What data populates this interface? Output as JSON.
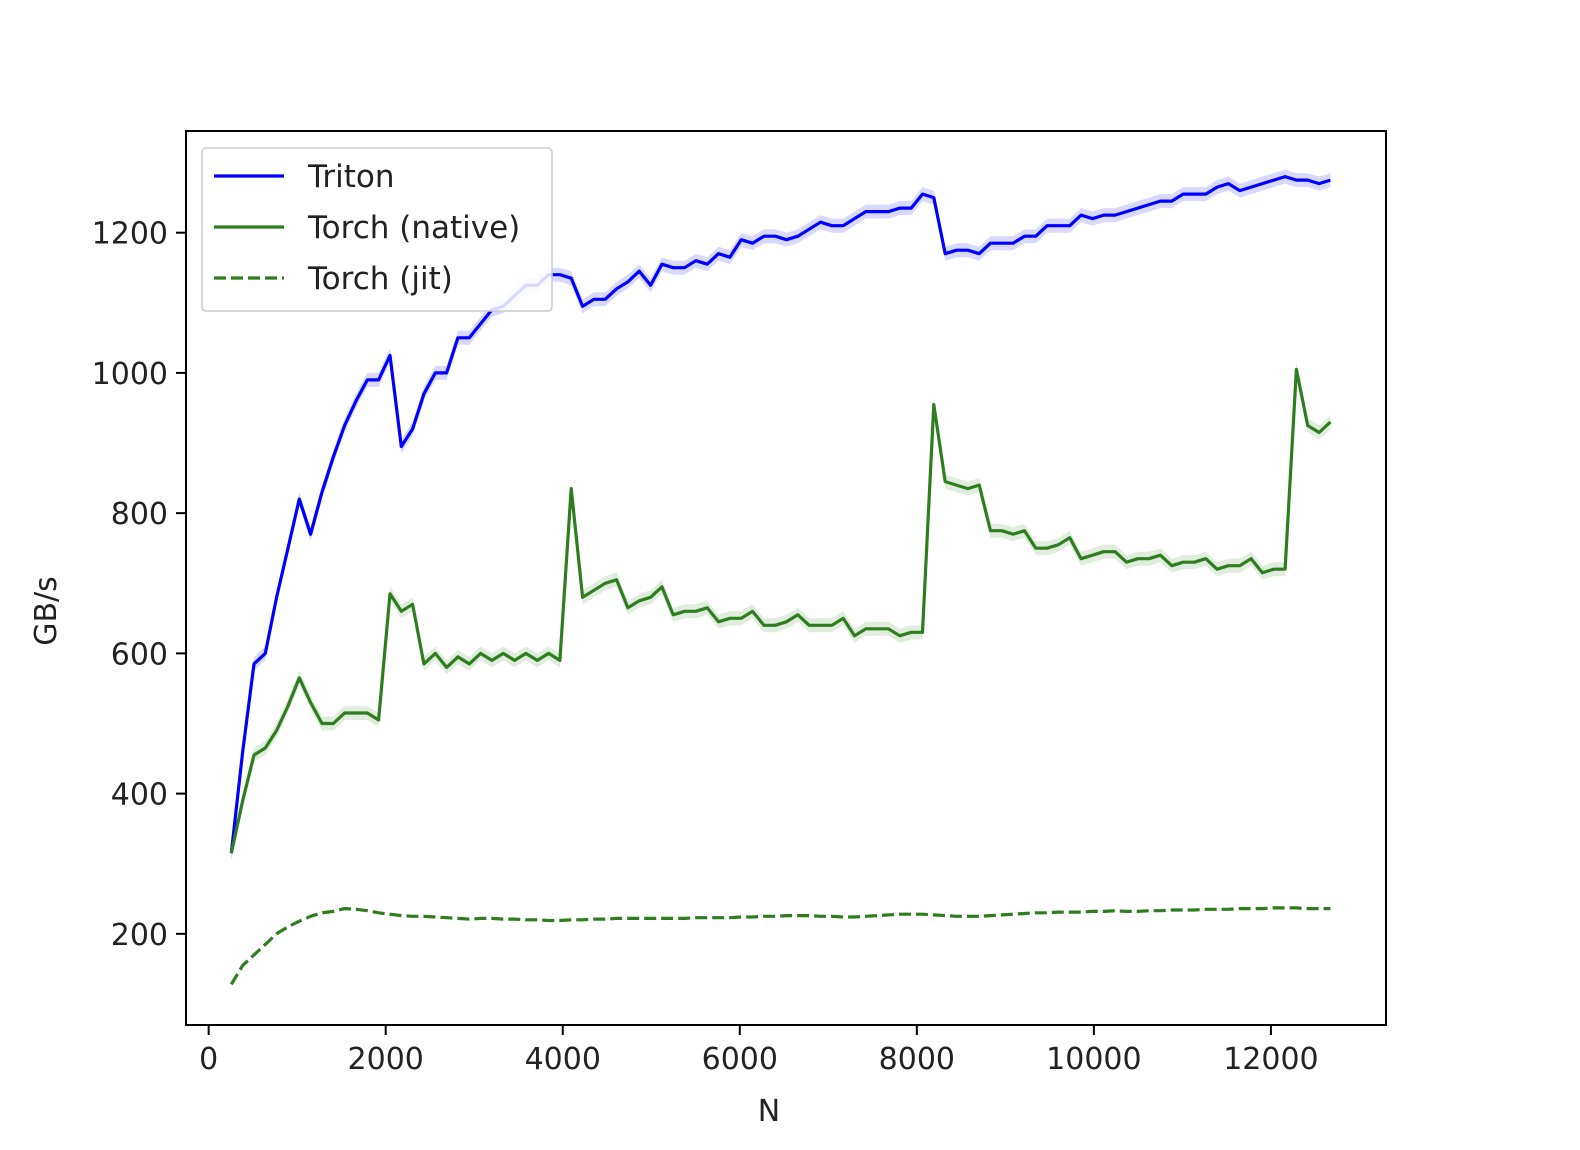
{
  "chart_data": {
    "type": "line",
    "title": "",
    "xlabel": "N",
    "ylabel": "GB/s",
    "xlim": [
      -256,
      13300
    ],
    "ylim": [
      70,
      1345
    ],
    "xticks": [
      0,
      2000,
      4000,
      6000,
      8000,
      10000,
      12000
    ],
    "yticks": [
      200,
      400,
      600,
      800,
      1000,
      1200
    ],
    "grid": false,
    "legend_position": "top-left",
    "x": [
      256,
      384,
      512,
      640,
      768,
      896,
      1024,
      1152,
      1280,
      1408,
      1536,
      1664,
      1792,
      1920,
      2048,
      2176,
      2304,
      2432,
      2560,
      2688,
      2816,
      2944,
      3072,
      3200,
      3328,
      3456,
      3584,
      3712,
      3840,
      3968,
      4096,
      4224,
      4352,
      4480,
      4608,
      4736,
      4864,
      4992,
      5120,
      5248,
      5376,
      5504,
      5632,
      5760,
      5888,
      6016,
      6144,
      6272,
      6400,
      6528,
      6656,
      6784,
      6912,
      7040,
      7168,
      7296,
      7424,
      7552,
      7680,
      7808,
      7936,
      8064,
      8192,
      8320,
      8448,
      8576,
      8704,
      8832,
      8960,
      9088,
      9216,
      9344,
      9472,
      9600,
      9728,
      9856,
      9984,
      10112,
      10240,
      10368,
      10496,
      10624,
      10752,
      10880,
      11008,
      11136,
      11264,
      11392,
      11520,
      11648,
      11776,
      11904,
      12032,
      12160,
      12288,
      12416,
      12544,
      12672
    ],
    "series": [
      {
        "name": "Triton",
        "color": "#0000ff",
        "dash": "solid",
        "values": [
          315,
          460,
          585,
          600,
          680,
          750,
          820,
          770,
          830,
          880,
          925,
          960,
          990,
          990,
          1025,
          895,
          920,
          970,
          1000,
          1000,
          1050,
          1050,
          1070,
          1090,
          1095,
          1110,
          1125,
          1125,
          1140,
          1140,
          1135,
          1095,
          1105,
          1105,
          1120,
          1130,
          1145,
          1125,
          1155,
          1150,
          1150,
          1160,
          1155,
          1170,
          1165,
          1190,
          1185,
          1195,
          1195,
          1190,
          1195,
          1205,
          1215,
          1210,
          1210,
          1220,
          1230,
          1230,
          1230,
          1235,
          1235,
          1255,
          1250,
          1170,
          1175,
          1175,
          1170,
          1185,
          1185,
          1185,
          1195,
          1195,
          1210,
          1210,
          1210,
          1225,
          1220,
          1225,
          1225,
          1230,
          1235,
          1240,
          1245,
          1245,
          1255,
          1255,
          1255,
          1265,
          1270,
          1260,
          1265,
          1270,
          1275,
          1280,
          1275,
          1275,
          1270,
          1275
        ]
      },
      {
        "name": "Torch (native)",
        "color": "#2e7d1e",
        "dash": "solid",
        "values": [
          315,
          390,
          455,
          465,
          490,
          525,
          565,
          530,
          500,
          500,
          515,
          515,
          515,
          505,
          685,
          660,
          670,
          585,
          600,
          580,
          595,
          585,
          600,
          590,
          600,
          590,
          600,
          590,
          600,
          590,
          835,
          680,
          690,
          700,
          705,
          665,
          675,
          680,
          695,
          655,
          660,
          660,
          665,
          645,
          650,
          650,
          660,
          640,
          640,
          645,
          655,
          640,
          640,
          640,
          650,
          625,
          635,
          635,
          635,
          625,
          630,
          630,
          955,
          845,
          840,
          835,
          840,
          775,
          775,
          770,
          775,
          750,
          750,
          755,
          765,
          735,
          740,
          745,
          745,
          730,
          735,
          735,
          740,
          725,
          730,
          730,
          735,
          720,
          725,
          725,
          735,
          715,
          720,
          720,
          1005,
          925,
          915,
          930
        ]
      },
      {
        "name": "Torch (jit)",
        "color": "#2e7d1e",
        "dash": "dashed",
        "values": [
          128,
          155,
          170,
          185,
          200,
          210,
          218,
          225,
          230,
          232,
          236,
          235,
          233,
          230,
          228,
          226,
          225,
          225,
          224,
          223,
          222,
          221,
          222,
          222,
          221,
          221,
          220,
          220,
          219,
          219,
          220,
          220,
          221,
          221,
          222,
          222,
          222,
          222,
          222,
          222,
          222,
          223,
          223,
          223,
          223,
          224,
          224,
          225,
          225,
          226,
          226,
          226,
          225,
          225,
          224,
          224,
          225,
          226,
          227,
          228,
          228,
          228,
          227,
          226,
          225,
          225,
          225,
          226,
          227,
          228,
          229,
          230,
          230,
          231,
          231,
          231,
          232,
          232,
          233,
          232,
          232,
          233,
          233,
          234,
          234,
          234,
          235,
          235,
          235,
          236,
          236,
          236,
          237,
          237,
          237,
          236,
          236,
          236
        ]
      }
    ]
  }
}
